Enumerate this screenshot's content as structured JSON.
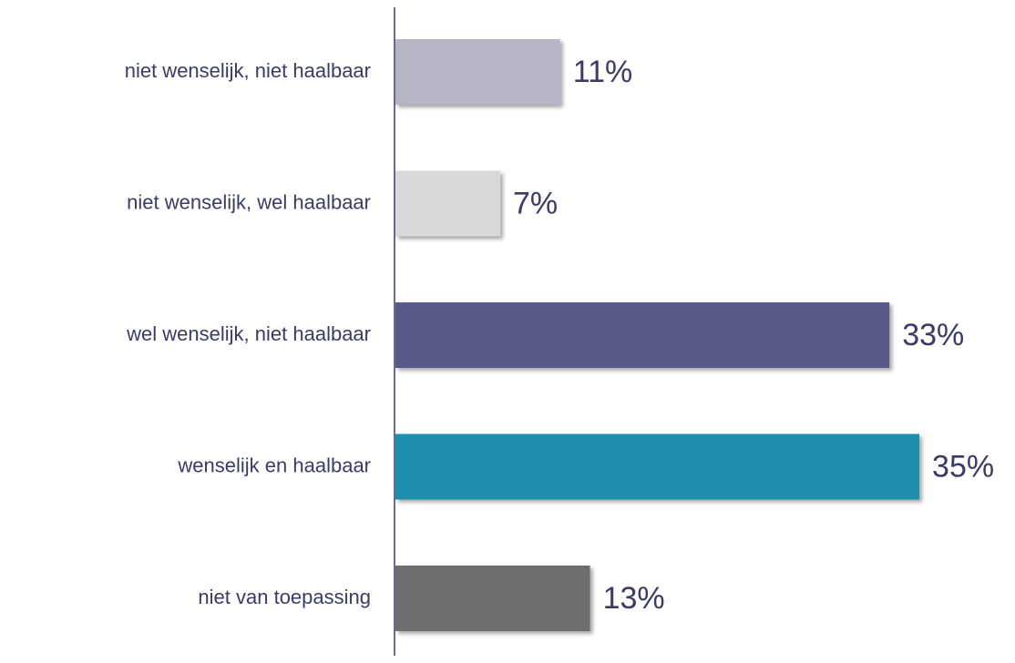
{
  "chart_data": {
    "type": "barh",
    "categories": [
      "niet wenselijk, niet haalbaar",
      "niet wenselijk, wel haalbaar",
      "wel wenselijk, niet haalbaar",
      "wenselijk en haalbaar",
      "niet van toepassing"
    ],
    "values": [
      11,
      7,
      33,
      35,
      13
    ],
    "value_labels": [
      "11%",
      "7%",
      "33%",
      "35%",
      "13%"
    ],
    "colors": [
      "#b6b5c6",
      "#d9d9d9",
      "#5a5a8a",
      "#1f8fad",
      "#6e6e6e"
    ]
  }
}
